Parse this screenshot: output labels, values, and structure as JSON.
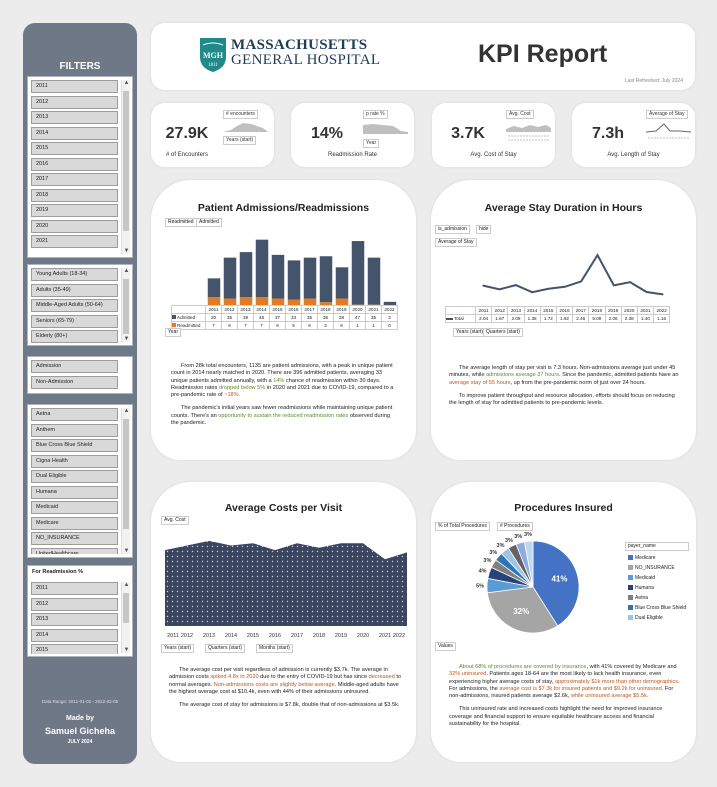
{
  "sidebar": {
    "title": "FILTERS",
    "years": [
      "2011",
      "2012",
      "2013",
      "2014",
      "2015",
      "2016",
      "2017",
      "2018",
      "2019",
      "2020",
      "2021"
    ],
    "age_groups": [
      "Young Adults (18-34)",
      "Adults (35-49)",
      "Middle-Aged Adults (50-64)",
      "Seniors (65-79)",
      "Elderly (80+)"
    ],
    "encounter_types": [
      "Admission",
      "Non-Admission"
    ],
    "payers": [
      "Aetna",
      "Anthem",
      "Blue Cross Blue Shield",
      "Cigna Health",
      "Dual Eligible",
      "Humana",
      "Medicaid",
      "Medicare",
      "NO_INSURANCE",
      "UnitedHealthcare"
    ],
    "readmission_header": "For Readmission %",
    "readmission_years": [
      "2011",
      "2012",
      "2013",
      "2014",
      "2015"
    ],
    "data_range": "Data Range: 2011-01-02 - 2022-02-05",
    "made_by": "Made by",
    "author": "Samuel Gicheha",
    "date": "JULY 2024"
  },
  "header": {
    "logo_line1": "MASSACHUSETTS",
    "logo_line2": "GENERAL HOSPITAL",
    "shield_text": "MGH",
    "shield_year": "1811",
    "title": "KPI Report",
    "refreshed": "Last Refreshed: July 2024"
  },
  "kpis": [
    {
      "value": "27.9K",
      "caption": "# of Encounters",
      "tag": "# encounters",
      "tag2": "Years (start)"
    },
    {
      "value": "14%",
      "caption": "Readmission Rate",
      "tag": "p rate %",
      "tag2": "Year"
    },
    {
      "value": "3.7K",
      "caption": "Avg. Cost of Stay",
      "tag": "Avg. Cost",
      "tag2": ""
    },
    {
      "value": "7.3h",
      "caption": "Avg. Length of Stay",
      "tag": "Average of Stay",
      "tag2": ""
    }
  ],
  "admissions": {
    "title": "Patient Admissions/Readmissions",
    "tag1": "Readmitted",
    "tag2": "Admitted",
    "axis_tag": "Year",
    "row_admitted": "Admitted",
    "row_readmitted": "Readmitted",
    "para1_a": "From 28k total encounters, 1135 are patient admissions, with a peak in unique patient count in 2014 nearly matched in 2020. There are 396 admitted patients, averaging 33 unique patients admitted annually, with a ",
    "para1_b": "14%",
    "para1_c": " chance of readmission within 30 days. Readmission rates ",
    "para1_d": "dropped below 5%",
    "para1_e": " in 2020 and 2021 due to COVID-19, compared to a pre-pandemic rate of ",
    "para1_f": "~18%.",
    "para2_a": "The pandemic's initial years saw fewer readmissions while maintaining unique patient counts. There's an ",
    "para2_b": "opportunity to sustain the reduced readmission rates",
    "para2_c": " observed during the pandemic."
  },
  "stay": {
    "title": "Average Stay Duration in Hours",
    "tag1": "is_admission",
    "tag2": "hide",
    "tag3": "Average of Stay",
    "row_total": "Total",
    "tag_years": "Years (start)",
    "tag_quarters": "Quarters (start)",
    "para1_a": "The average length of stay per visit is 7.3 hours. Non-admissions average just under 45 minutes, while ",
    "para1_b": "admissions average 37 hours",
    "para1_c": ". Since the pandemic, admitted patients have an ",
    "para1_d": "average stay of 55 hours",
    "para1_e": ", up from the pre-pandemic norm of just over 24 hours.",
    "para2": "To improve patient throughput and resource allocation, efforts should focus on reducing the length of stay for admitted patients to pre-pandemic levels."
  },
  "costs": {
    "title": "Average Costs per Visit",
    "tag1": "Avg. Cost",
    "tag_years": "Years (start)",
    "tag_quarters": "Quarters (start)",
    "tag_months": "Months (start)",
    "para1_a": "The average cost per visit regardless of admission is currently $3.7k. The average in admission costs ",
    "para1_b": "spiked 4.8x in 2020",
    "para1_c": " due to the entry of COVID-19 but has since ",
    "para1_d": "decreased",
    "para1_e": " to normal averages. ",
    "para1_f": "Non-admissions costs are slightly below average",
    "para1_g": ". Middle-aged adults have the highest average cost at $10.4k, even with 44% of their admissions uninsured.",
    "para2": "The average cost of stay for admissions is $7.8k, double that of non-admissions at $3.5k."
  },
  "procedures": {
    "title": "Procedures Insured",
    "tag1": "% of Total Procedures",
    "tag2": "# Procedures",
    "tag_values": "Values",
    "legend_title": "payer_name",
    "legend": [
      "Medicare",
      "NO_INSURANCE",
      "Medicaid",
      "Humana",
      "Aetna",
      "Blue Cross Blue Shield",
      "Dual Eligible"
    ],
    "para1_a": "About 68% of procedures are covered by insurance",
    "para1_b": ", with 41% covered by Medicare and ",
    "para1_c": "32% uninsured",
    "para1_d": ". Patients ages 18-64 are the most likely to lack health insurance, even experiencing higher average costs of stay, ",
    "para1_e": "approximately $1k more than other demographics",
    "para1_f": ". For admissions, the ",
    "para1_g": "average cost is $7.3k for insured patients and $9.2k for uninsured",
    "para1_h": ". For non-admissions, insured patients average $2.6k, ",
    "para1_i": "while uninsured average $5.5k.",
    "para2": "This uninsured rate and increased costs highlight the need for improved insurance coverage and financial support to ensure equitable healthcare access and financial sustainability for the hospital."
  },
  "chart_data": [
    {
      "type": "bar",
      "title": "Patient Admissions/Readmissions",
      "categories": [
        "2011",
        "2012",
        "2013",
        "2014",
        "2015",
        "2016",
        "2017",
        "2018",
        "2019",
        "2020",
        "2021",
        "2022"
      ],
      "series": [
        {
          "name": "Admitted",
          "values": [
            20,
            35,
            39,
            48,
            37,
            33,
            35,
            36,
            28,
            47,
            35,
            3
          ],
          "color": "#44546a"
        },
        {
          "name": "Readmitted",
          "values": [
            7,
            6,
            7,
            7,
            6,
            5,
            6,
            3,
            6,
            1,
            1,
            0
          ],
          "color": "#e07b28"
        }
      ]
    },
    {
      "type": "line",
      "title": "Average Stay Duration in Hours",
      "categories": [
        "2011",
        "2012",
        "2013",
        "2014",
        "2015",
        "2016",
        "2017",
        "2018",
        "2019",
        "2020",
        "2021",
        "2022"
      ],
      "series": [
        {
          "name": "Total",
          "values": [
            2.04,
            1.67,
            2.09,
            1.38,
            1.72,
            1.92,
            2.46,
            5.09,
            2.06,
            2.38,
            1.4,
            1.16
          ],
          "color": "#44546a"
        }
      ]
    },
    {
      "type": "area",
      "title": "Average Costs per Visit",
      "categories": [
        "2011",
        "2012",
        "2013",
        "2014",
        "2015",
        "2016",
        "2017",
        "2018",
        "2019",
        "2020",
        "2021",
        "2022"
      ],
      "series": [
        {
          "name": "",
          "values": [
            3.3,
            3.5,
            3.7,
            3.5,
            3.6,
            3.3,
            3.6,
            3.4,
            3.6,
            3.6,
            2.9,
            3.2
          ],
          "color": "#44546a"
        }
      ],
      "ylim": [
        0,
        4
      ]
    },
    {
      "type": "pie",
      "title": "Procedures Insured",
      "categories": [
        "Medicare",
        "NO_INSURANCE",
        "Medicaid",
        "Humana",
        "Aetna",
        "Blue Cross Blue Shield",
        "Dual Eligible",
        "Anthem",
        "Cigna Health",
        "UnitedHealthcare"
      ],
      "values": [
        41,
        32,
        5,
        4,
        3,
        3,
        3,
        3,
        3,
        3
      ],
      "labels": [
        "41%",
        "32%",
        "5%",
        "4%",
        "3%",
        "3%",
        "3%",
        "3%",
        "3%",
        "3%"
      ],
      "colors": [
        "#4472c4",
        "#a5a5a5",
        "#5b9bd5",
        "#264478",
        "#7f7f7f",
        "#2e75b6",
        "#9dc3e6",
        "#636363",
        "#8faadc",
        "#bdd7ee"
      ]
    }
  ]
}
